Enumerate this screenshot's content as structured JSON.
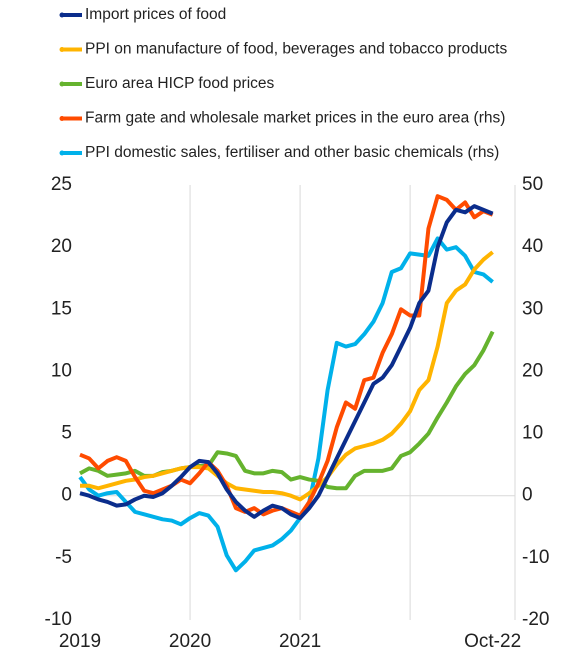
{
  "chart_data": {
    "type": "line",
    "categories": [
      "2019",
      null,
      null,
      null,
      null,
      null,
      null,
      null,
      null,
      null,
      null,
      null,
      "2020",
      null,
      null,
      null,
      null,
      null,
      null,
      null,
      null,
      null,
      null,
      null,
      "2021",
      null,
      null,
      null,
      null,
      null,
      null,
      null,
      null,
      null,
      null,
      null,
      null,
      null,
      null,
      null,
      null,
      null,
      null,
      null,
      null,
      "Oct-22"
    ],
    "series": [
      {
        "name": "Import prices of food",
        "color": "#0b2d8c",
        "values": [
          0.2,
          0,
          -0.3,
          -0.5,
          -0.8,
          -0.7,
          -0.3,
          0,
          -0.1,
          0.2,
          0.8,
          1.5,
          2.3,
          2.8,
          2.7,
          1.8,
          0.5,
          -0.5,
          -1.2,
          -1.7,
          -1.2,
          -0.8,
          -1.0,
          -1.5,
          -1.8,
          -1.0,
          0,
          1.5,
          3,
          4.5,
          6,
          7.5,
          9,
          9.5,
          10.5,
          12,
          13.5,
          15.5,
          16.5,
          20,
          22,
          23,
          22.8,
          23.3,
          23,
          22.7
        ]
      },
      {
        "name": "PPI on manufacture of food, beverages and tobacco products",
        "color": "#ffb400",
        "values": [
          0.8,
          0.8,
          0.6,
          0.8,
          1.0,
          1.2,
          1.3,
          1.5,
          1.6,
          1.8,
          2.0,
          2.2,
          2.3,
          2.3,
          2.2,
          1.6,
          1.0,
          0.6,
          0.5,
          0.4,
          0.3,
          0.3,
          0.2,
          0.0,
          -0.3,
          0.2,
          0.8,
          1.5,
          2.5,
          3.3,
          3.8,
          4.0,
          4.2,
          4.5,
          5.0,
          5.8,
          6.8,
          8.5,
          9.3,
          12,
          15.5,
          16.5,
          17,
          18.2,
          19,
          19.6
        ]
      },
      {
        "name": "Euro area HICP food prices",
        "color": "#65b32e",
        "values": [
          1.8,
          2.2,
          2.0,
          1.6,
          1.7,
          1.8,
          2.0,
          1.6,
          1.6,
          1.9,
          2.0,
          2.2,
          2.3,
          2.4,
          2.4,
          3.5,
          3.4,
          3.2,
          2.0,
          1.8,
          1.8,
          2.0,
          1.9,
          1.3,
          1.5,
          1.3,
          1.2,
          0.7,
          0.6,
          0.6,
          1.6,
          2.0,
          2.0,
          2.0,
          2.2,
          3.2,
          3.5,
          4.2,
          5.0,
          6.3,
          7.5,
          8.8,
          9.8,
          10.5,
          11.7,
          13.2
        ]
      },
      {
        "name": "Farm gate and wholesale market prices in the euro area (rhs)",
        "color": "#ff4b00",
        "axis": "y2",
        "values": [
          6.6,
          6.0,
          4.4,
          5.6,
          6.2,
          5.6,
          3.0,
          0.8,
          0.4,
          1.0,
          1.6,
          2.6,
          2.0,
          3.6,
          5.4,
          4.0,
          1.6,
          -2.0,
          -2.6,
          -2.0,
          -3.0,
          -2.4,
          -2.0,
          -2.6,
          -3.2,
          -1.0,
          2.0,
          5.6,
          11,
          15,
          14,
          18.6,
          19,
          23,
          26,
          30,
          29,
          29,
          43,
          48.2,
          47.6,
          46,
          47.2,
          44.8,
          45.8,
          45.2
        ]
      },
      {
        "name": "PPI domestic sales, fertiliser and other basic chemicals (rhs)",
        "color": "#00b1ea",
        "axis": "y2",
        "values": [
          3.0,
          1.0,
          0,
          0.4,
          0.6,
          -1.0,
          -2.6,
          -3.0,
          -3.4,
          -3.8,
          -4.0,
          -4.6,
          -3.6,
          -2.8,
          -3.2,
          -5.0,
          -9.6,
          -12,
          -10.6,
          -8.8,
          -8.4,
          -8.0,
          -7.0,
          -5.6,
          -3.6,
          -1.0,
          6,
          17,
          24.6,
          24,
          24.4,
          26,
          28,
          31,
          36,
          36.6,
          39,
          38.8,
          38.6,
          41.4,
          39.6,
          40,
          38.6,
          36,
          35.6,
          34.4
        ]
      }
    ],
    "ylim": [
      -10,
      25
    ],
    "yticks": [
      -10,
      -5,
      0,
      5,
      10,
      15,
      20,
      25
    ],
    "y2lim": [
      -20,
      50
    ],
    "y2ticks": [
      -20,
      -10,
      0,
      10,
      20,
      30,
      40,
      50
    ]
  }
}
